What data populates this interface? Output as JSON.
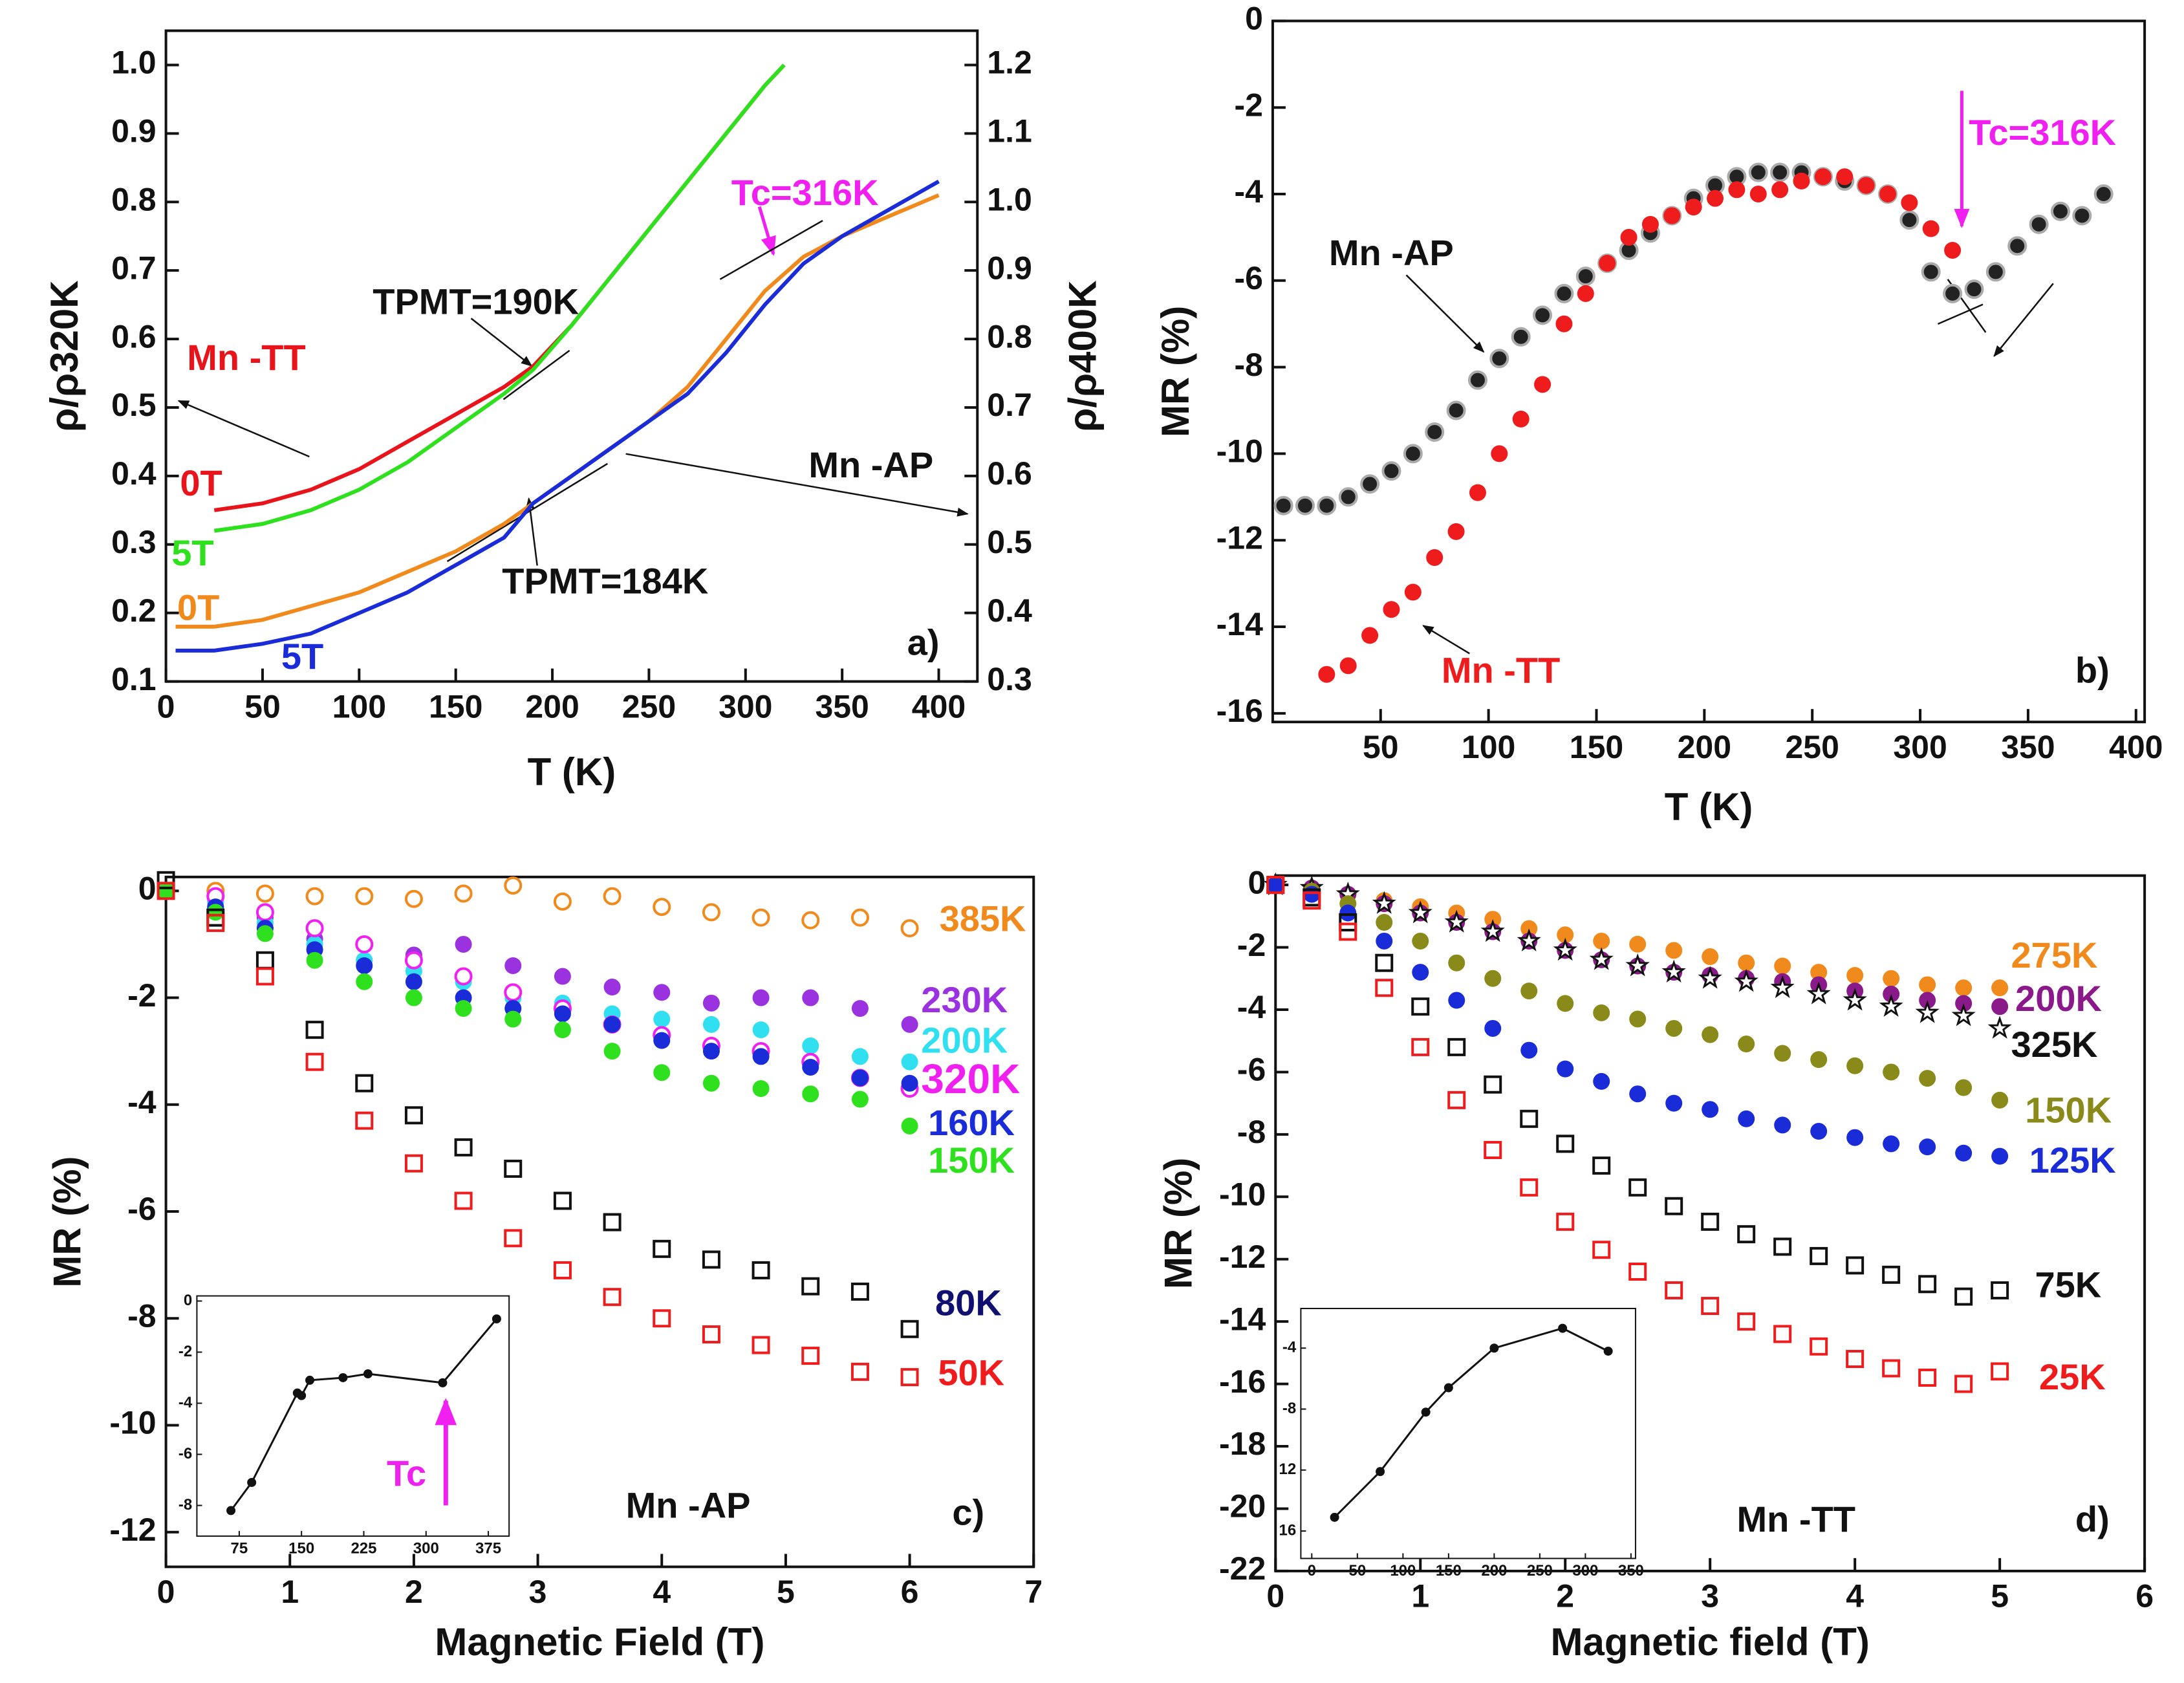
{
  "chart_data": [
    {
      "type": "line",
      "x_label": "T (K)",
      "y_label": "ρ/ρ320K",
      "y2_label": "ρ/ρ400K",
      "xlim": [
        0,
        420
      ],
      "xticks": [
        0,
        50,
        100,
        150,
        200,
        250,
        300,
        350,
        400
      ],
      "ylim": [
        0.1,
        1.05
      ],
      "yticks": [
        0.1,
        0.2,
        0.3,
        0.4,
        0.5,
        0.6,
        0.7,
        0.8,
        0.9,
        {
          "value": 1,
          "label": "1.0"
        }
      ],
      "y2lim": [
        0.3,
        1.25
      ],
      "y2ticks": [
        0.3,
        0.4,
        0.5,
        0.6,
        0.7,
        0.8,
        0.9,
        {
          "value": 1,
          "label": "1.0"
        },
        1.1,
        1.2
      ],
      "series": [
        {
          "name": "0T",
          "color": "#e8141c",
          "x": [
            25,
            50,
            75,
            100,
            125,
            150,
            175,
            190,
            210,
            230,
            250,
            270,
            290,
            310,
            320
          ],
          "values": [
            0.35,
            0.36,
            0.38,
            0.41,
            0.45,
            0.49,
            0.53,
            0.56,
            0.62,
            0.69,
            0.76,
            0.83,
            0.9,
            0.97,
            1.0
          ]
        },
        {
          "name": "5T",
          "color": "#2ee01e",
          "x": [
            25,
            50,
            75,
            100,
            125,
            150,
            175,
            190,
            210,
            230,
            250,
            270,
            290,
            310,
            320
          ],
          "values": [
            0.32,
            0.33,
            0.35,
            0.38,
            0.42,
            0.47,
            0.52,
            0.555,
            0.62,
            0.69,
            0.76,
            0.83,
            0.9,
            0.97,
            1.0
          ]
        },
        {
          "name": "0T",
          "color": "#f08a1c",
          "axis": "y2",
          "x": [
            5,
            25,
            50,
            75,
            100,
            125,
            150,
            175,
            190,
            210,
            230,
            250,
            270,
            290,
            310,
            330,
            350,
            375,
            400
          ],
          "values": [
            0.38,
            0.38,
            0.39,
            0.41,
            0.43,
            0.46,
            0.49,
            0.53,
            0.56,
            0.6,
            0.64,
            0.68,
            0.73,
            0.8,
            0.87,
            0.92,
            0.95,
            0.98,
            1.01
          ]
        },
        {
          "name": "5T",
          "color": "#1a2cd8",
          "axis": "y2",
          "x": [
            5,
            25,
            50,
            75,
            100,
            125,
            150,
            175,
            190,
            210,
            230,
            250,
            270,
            290,
            310,
            330,
            350,
            375,
            400
          ],
          "values": [
            0.345,
            0.345,
            0.355,
            0.37,
            0.4,
            0.43,
            0.47,
            0.51,
            0.56,
            0.6,
            0.64,
            0.68,
            0.72,
            0.78,
            0.85,
            0.91,
            0.95,
            0.99,
            1.03
          ]
        }
      ],
      "annotations": [
        {
          "text": "Mn -TT",
          "color": "#e8141c"
        },
        {
          "text": "Mn -AP",
          "color": "#111111"
        },
        {
          "text": "TPMT=190K",
          "color": "#111111"
        },
        {
          "text": "TPMT=184K",
          "color": "#111111"
        },
        {
          "text": "Tc=316K",
          "color": "#f020f0"
        },
        {
          "text": "a)",
          "color": "#111111"
        }
      ]
    },
    {
      "type": "scatter",
      "x_label": "T (K)",
      "y_label": "MR (%)",
      "xlim": [
        0,
        404
      ],
      "xticks": [
        50,
        100,
        150,
        200,
        250,
        300,
        350,
        400
      ],
      "ylim": [
        -16.2,
        0
      ],
      "yticks": [
        0,
        -2,
        -4,
        -6,
        -8,
        -10,
        -12,
        -14,
        -16
      ],
      "series": [
        {
          "name": "Mn -AP",
          "color": "#111111",
          "marker": "ball",
          "x": [
            5,
            15,
            25,
            35,
            45,
            55,
            65,
            75,
            85,
            95,
            105,
            115,
            125,
            135,
            145,
            155,
            165,
            175,
            185,
            195,
            205,
            215,
            225,
            235,
            245,
            255,
            265,
            275,
            285,
            295,
            305,
            315,
            325,
            335,
            345,
            355,
            365,
            375,
            385
          ],
          "values": [
            -11.2,
            -11.2,
            -11.2,
            -11.0,
            -10.7,
            -10.4,
            -10.0,
            -9.5,
            -9.0,
            -8.3,
            -7.8,
            -7.3,
            -6.8,
            -6.3,
            -5.9,
            -5.6,
            -5.3,
            -4.9,
            -4.5,
            -4.1,
            -3.8,
            -3.6,
            -3.5,
            -3.5,
            -3.5,
            -3.6,
            -3.7,
            -3.8,
            -4.0,
            -4.6,
            -5.8,
            -6.3,
            -6.2,
            -5.8,
            -5.2,
            -4.7,
            -4.4,
            -4.5,
            -4.0
          ]
        },
        {
          "name": "Mn -TT",
          "color": "#ee1c1c",
          "marker": "dot",
          "x": [
            25,
            35,
            45,
            55,
            65,
            75,
            85,
            95,
            105,
            115,
            125,
            135,
            145,
            155,
            165,
            175,
            185,
            195,
            205,
            215,
            225,
            235,
            245,
            255,
            265,
            275,
            285,
            295,
            305,
            315
          ],
          "values": [
            -15.1,
            -14.9,
            -14.2,
            -13.6,
            -13.2,
            -12.4,
            -11.8,
            -10.9,
            -10.0,
            -9.2,
            -8.4,
            -7.0,
            -6.3,
            -5.6,
            -5.0,
            -4.7,
            -4.5,
            -4.3,
            -4.1,
            -3.9,
            -4.0,
            -3.9,
            -3.7,
            -3.6,
            -3.6,
            -3.8,
            -4.0,
            -4.2,
            -4.8,
            -5.3
          ]
        }
      ],
      "annotations": [
        {
          "text": "Tc=316K",
          "color": "#f020f0"
        },
        {
          "text": "b)",
          "color": "#111111"
        }
      ]
    },
    {
      "type": "scatter",
      "x_label": "Magnetic Field (T)",
      "y_label": "MR (%)",
      "xlim": [
        0,
        7
      ],
      "xticks": [
        0,
        1,
        2,
        3,
        4,
        5,
        6,
        7
      ],
      "ylim": [
        -12.65,
        0.26
      ],
      "yticks": [
        0,
        -2,
        -4,
        -6,
        -8,
        -10,
        -12
      ],
      "x": [
        0,
        0.4,
        0.8,
        1.2,
        1.6,
        2,
        2.4,
        2.8,
        3.2,
        3.6,
        4,
        4.4,
        4.8,
        5.2,
        5.6,
        6
      ],
      "series": [
        {
          "name": "385K",
          "color": "#f08a1c",
          "marker": "ring",
          "values": [
            0,
            0,
            -0.05,
            -0.1,
            -0.1,
            -0.15,
            -0.05,
            0.1,
            -0.2,
            -0.1,
            -0.3,
            -0.4,
            -0.5,
            -0.55,
            -0.5,
            -0.7
          ]
        },
        {
          "name": "230K",
          "color": "#9a32e0",
          "marker": "dot",
          "values": [
            0,
            -0.2,
            -0.5,
            -0.9,
            -1.3,
            -1.2,
            -1.0,
            -1.4,
            -1.6,
            -1.8,
            -1.9,
            -2.1,
            -2.0,
            -2.0,
            -2.2,
            -2.5
          ]
        },
        {
          "name": "200K",
          "color": "#30e0f0",
          "marker": "dot",
          "values": [
            0,
            -0.2,
            -0.6,
            -1.0,
            -1.3,
            -1.5,
            -1.7,
            -2.0,
            -2.1,
            -2.3,
            -2.4,
            -2.5,
            -2.6,
            -2.9,
            -3.1,
            -3.2
          ]
        },
        {
          "name": "320K",
          "color": "#f020f0",
          "marker": "ring",
          "values": [
            0,
            -0.1,
            -0.4,
            -0.7,
            -1.0,
            -1.3,
            -1.6,
            -1.9,
            -2.2,
            -2.5,
            -2.7,
            -2.9,
            -3.0,
            -3.2,
            -3.5,
            -3.7
          ]
        },
        {
          "name": "160K",
          "color": "#1a2cd8",
          "marker": "dot",
          "values": [
            0,
            -0.3,
            -0.7,
            -1.1,
            -1.4,
            -1.7,
            -2.0,
            -2.2,
            -2.3,
            -2.5,
            -2.8,
            -3.0,
            -3.1,
            -3.3,
            -3.5,
            -3.6
          ]
        },
        {
          "name": "150K",
          "color": "#2ee01e",
          "marker": "dot",
          "values": [
            0,
            -0.4,
            -0.8,
            -1.3,
            -1.7,
            -2.0,
            -2.2,
            -2.4,
            -2.6,
            -3.0,
            -3.4,
            -3.6,
            -3.7,
            -3.8,
            -3.9,
            -4.4
          ]
        },
        {
          "name": "80K",
          "color": "#111111",
          "label_color": "#101070",
          "marker": "square",
          "values": [
            0.2,
            -0.5,
            -1.3,
            -2.6,
            -3.6,
            -4.2,
            -4.8,
            -5.2,
            -5.8,
            -6.2,
            -6.7,
            -6.9,
            -7.1,
            -7.4,
            -7.5,
            -8.2
          ]
        },
        {
          "name": "50K",
          "color": "#ee1c1c",
          "marker": "square",
          "values": [
            0,
            -0.6,
            -1.6,
            -3.2,
            -4.3,
            -5.1,
            -5.8,
            -6.5,
            -7.1,
            -7.6,
            -8.0,
            -8.3,
            -8.5,
            -8.7,
            -9.0,
            -9.1
          ]
        }
      ],
      "annotations": [
        {
          "text": "Mn -AP",
          "color": "#111111"
        },
        {
          "text": "c)",
          "color": "#111111"
        },
        {
          "text": "Tc",
          "color": "#f020f0"
        }
      ],
      "inset": {
        "type": "line",
        "xlim": [
          24,
          400
        ],
        "xticks": [
          75,
          150,
          225,
          300,
          375
        ],
        "ylim": [
          -9.2,
          0.2
        ],
        "yticks": [
          0,
          -2,
          -4,
          -6,
          -8
        ],
        "x": [
          65,
          90,
          145,
          150,
          160,
          200,
          230,
          320,
          385
        ],
        "values": [
          -8.2,
          -7.1,
          -3.6,
          -3.7,
          -3.1,
          -3.0,
          -2.85,
          -3.2,
          -0.7
        ]
      }
    },
    {
      "type": "scatter",
      "x_label": "Magnetic field (T)",
      "y_label": "MR (%)",
      "xlim": [
        0,
        6
      ],
      "xticks": [
        0,
        1,
        2,
        3,
        4,
        5,
        6
      ],
      "ylim": [
        -22,
        0.3
      ],
      "yticks": [
        0,
        -2,
        -4,
        -6,
        -8,
        -10,
        -12,
        -14,
        -16,
        -18,
        -20,
        -22
      ],
      "x": [
        0,
        0.25,
        0.5,
        0.75,
        1,
        1.25,
        1.5,
        1.75,
        2,
        2.25,
        2.5,
        2.75,
        3,
        3.25,
        3.5,
        3.75,
        4,
        4.25,
        4.5,
        4.75,
        5
      ],
      "series": [
        {
          "name": "275K",
          "color": "#f08a1c",
          "marker": "dot",
          "values": [
            0,
            -0.1,
            -0.3,
            -0.5,
            -0.7,
            -0.9,
            -1.1,
            -1.4,
            -1.6,
            -1.8,
            -1.9,
            -2.1,
            -2.3,
            -2.5,
            -2.6,
            -2.8,
            -2.9,
            -3.0,
            -3.2,
            -3.3,
            -3.3
          ]
        },
        {
          "name": "200K",
          "color": "#8a1a8a",
          "marker": "dot",
          "values": [
            0,
            -0.1,
            -0.3,
            -0.6,
            -0.9,
            -1.2,
            -1.5,
            -1.8,
            -2.1,
            -2.4,
            -2.6,
            -2.8,
            -2.9,
            -3.0,
            -3.1,
            -3.2,
            -3.4,
            -3.5,
            -3.7,
            -3.8,
            -3.9
          ]
        },
        {
          "name": "325K",
          "color": "#111111",
          "marker": "star",
          "values": [
            0,
            -0.1,
            -0.3,
            -0.6,
            -0.9,
            -1.2,
            -1.5,
            -1.8,
            -2.1,
            -2.4,
            -2.6,
            -2.8,
            -3.0,
            -3.1,
            -3.3,
            -3.5,
            -3.7,
            -3.9,
            -4.1,
            -4.2,
            -4.6
          ]
        },
        {
          "name": "150K",
          "color": "#8a8a1a",
          "marker": "dot",
          "values": [
            0,
            -0.2,
            -0.6,
            -1.2,
            -1.8,
            -2.5,
            -3.0,
            -3.4,
            -3.8,
            -4.1,
            -4.3,
            -4.6,
            -4.8,
            -5.1,
            -5.4,
            -5.6,
            -5.8,
            -6.0,
            -6.2,
            -6.5,
            -6.9
          ]
        },
        {
          "name": "125K",
          "color": "#1a2cd8",
          "marker": "dot",
          "values": [
            0,
            -0.3,
            -0.9,
            -1.8,
            -2.8,
            -3.7,
            -4.6,
            -5.3,
            -5.9,
            -6.3,
            -6.7,
            -7.0,
            -7.2,
            -7.5,
            -7.7,
            -7.9,
            -8.1,
            -8.3,
            -8.4,
            -8.6,
            -8.7
          ]
        },
        {
          "name": "75K",
          "color": "#111111",
          "marker": "square",
          "values": [
            0,
            -0.4,
            -1.2,
            -2.5,
            -3.9,
            -5.2,
            -6.4,
            -7.5,
            -8.3,
            -9.0,
            -9.7,
            -10.3,
            -10.8,
            -11.2,
            -11.6,
            -11.9,
            -12.2,
            -12.5,
            -12.8,
            -13.2,
            -13.0
          ]
        },
        {
          "name": "25K",
          "color": "#ee1c1c",
          "marker": "square",
          "values": [
            0,
            -0.5,
            -1.5,
            -3.3,
            -5.2,
            -6.9,
            -8.5,
            -9.7,
            -10.8,
            -11.7,
            -12.4,
            -13.0,
            -13.5,
            -14.0,
            -14.4,
            -14.8,
            -15.2,
            -15.5,
            -15.8,
            -16.0,
            -15.6
          ]
        }
      ],
      "annotations": [
        {
          "text": "Mn -TT",
          "color": "#111111"
        },
        {
          "text": "d)",
          "color": "#111111"
        }
      ],
      "inset": {
        "type": "line",
        "xlim": [
          -12,
          355
        ],
        "xticks": [
          0,
          50,
          100,
          150,
          200,
          250,
          300,
          350
        ],
        "ylim": [
          -17.8,
          -1.4
        ],
        "yticks": [
          -4,
          -8,
          {
            "value": -12,
            "label": "12"
          },
          {
            "value": -16,
            "label": "16"
          }
        ],
        "x": [
          25,
          75,
          125,
          150,
          200,
          275,
          325
        ],
        "values": [
          -15.1,
          -12.1,
          -8.2,
          -6.6,
          -4.0,
          -2.7,
          -4.2
        ]
      }
    }
  ]
}
